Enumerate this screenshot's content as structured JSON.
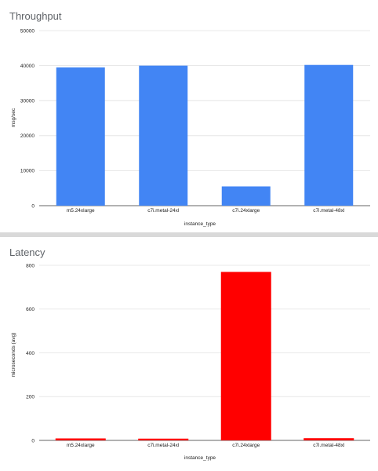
{
  "chart_data": [
    {
      "type": "bar",
      "title": "Throughput",
      "xlabel": "instance_type",
      "ylabel": "msg/sec",
      "categories": [
        "m5.24xlarge",
        "c7i.metal-24xl",
        "c7i.24xlarge",
        "c7i.metal-48xl"
      ],
      "values": [
        39500,
        40000,
        5500,
        40200
      ],
      "ylim": [
        0,
        50000
      ],
      "yticks": [
        "0",
        "10000",
        "20000",
        "30000",
        "40000",
        "50000"
      ],
      "bar_color": "#4285f4",
      "grid": true,
      "legend": "none"
    },
    {
      "type": "bar",
      "title": "Latency",
      "xlabel": "instance_type",
      "ylabel": "microseconds (avg)",
      "categories": [
        "m5.24xlarge",
        "c7i.metal-24xl",
        "c7i.24xlarge",
        "c7i.metal-48xl"
      ],
      "values": [
        9,
        8,
        770,
        10
      ],
      "ylim": [
        0,
        800
      ],
      "yticks": [
        "0",
        "200",
        "400",
        "600",
        "800"
      ],
      "bar_color": "#ff0000",
      "grid": true,
      "legend": "none"
    }
  ]
}
